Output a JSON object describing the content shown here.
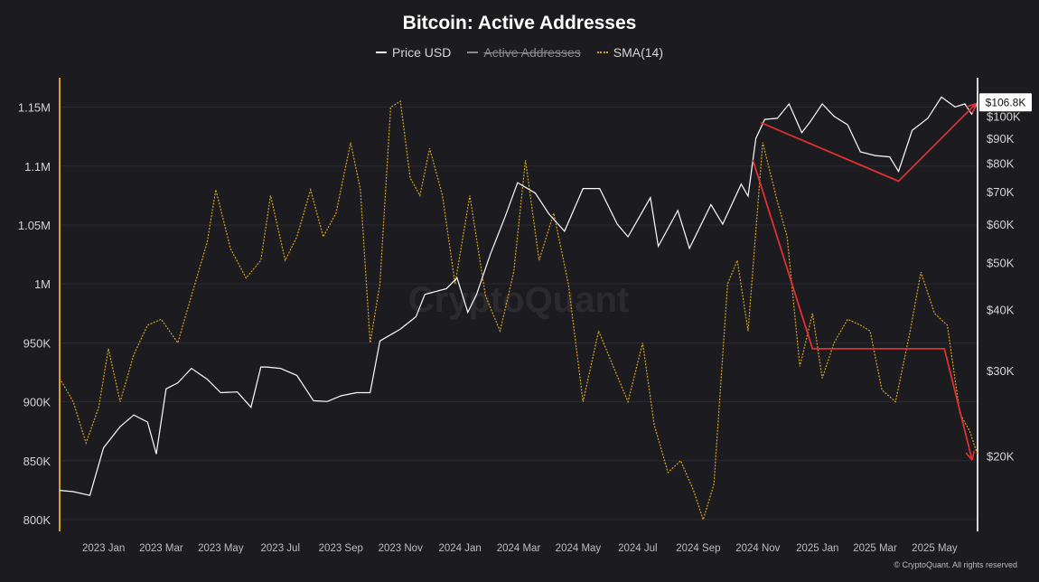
{
  "title": "Bitcoin: Active Addresses",
  "legend": [
    {
      "label": "Price USD",
      "hidden": false
    },
    {
      "label": "Active Addresses",
      "hidden": true
    },
    {
      "label": "SMA(14)",
      "hidden": false
    }
  ],
  "watermark": "CryptoQuant",
  "footer": "© CryptoQuant. All rights reserved",
  "colors": {
    "background": "#1b1b20",
    "price": "#ffffff",
    "sma": "#d9a21b",
    "annotation": "#e03030",
    "left_axis": "#d9a21b",
    "right_axis": "#d8d8d8"
  },
  "chart_data": {
    "type": "line",
    "title": "Bitcoin: Active Addresses",
    "x_ticks": [
      "2023 Jan",
      "2023 Mar",
      "2023 May",
      "2023 Jul",
      "2023 Sep",
      "2023 Nov",
      "2024 Jan",
      "2024 Mar",
      "2024 May",
      "2024 Jul",
      "2024 Sep",
      "2024 Nov",
      "2025 Jan",
      "2025 Mar",
      "2025 May"
    ],
    "x_range": [
      "2022-12-01",
      "2025-06-28"
    ],
    "left_axis": {
      "ticks": [
        "800K",
        "850K",
        "900K",
        "950K",
        "1M",
        "1.05M",
        "1.1M",
        "1.15M"
      ],
      "range": [
        790000,
        1175000
      ]
    },
    "right_axis": {
      "scale": "log",
      "ticks": [
        "$20K",
        "$30K",
        "$40K",
        "$50K",
        "$60K",
        "$70K",
        "$80K",
        "$90K",
        "$100K"
      ],
      "range": [
        14000,
        120000
      ]
    },
    "current_price_label": "$106.8K",
    "grid": true,
    "legend_position": "top-center",
    "series": [
      {
        "name": "Price USD",
        "axis": "right",
        "points": [
          [
            "2022-12-01",
            17000
          ],
          [
            "2022-12-15",
            16900
          ],
          [
            "2023-01-01",
            16600
          ],
          [
            "2023-01-15",
            20800
          ],
          [
            "2023-02-01",
            23000
          ],
          [
            "2023-02-15",
            24300
          ],
          [
            "2023-03-01",
            23500
          ],
          [
            "2023-03-10",
            20200
          ],
          [
            "2023-03-20",
            27500
          ],
          [
            "2023-04-01",
            28300
          ],
          [
            "2023-04-15",
            30300
          ],
          [
            "2023-05-01",
            28800
          ],
          [
            "2023-05-15",
            27000
          ],
          [
            "2023-06-01",
            27100
          ],
          [
            "2023-06-15",
            25200
          ],
          [
            "2023-06-25",
            30500
          ],
          [
            "2023-07-01",
            30500
          ],
          [
            "2023-07-15",
            30300
          ],
          [
            "2023-08-01",
            29300
          ],
          [
            "2023-08-18",
            26000
          ],
          [
            "2023-09-01",
            25900
          ],
          [
            "2023-09-15",
            26600
          ],
          [
            "2023-10-01",
            27000
          ],
          [
            "2023-10-15",
            27000
          ],
          [
            "2023-10-25",
            34500
          ],
          [
            "2023-11-15",
            36500
          ],
          [
            "2023-12-01",
            38700
          ],
          [
            "2023-12-10",
            43000
          ],
          [
            "2024-01-01",
            44200
          ],
          [
            "2024-01-12",
            46500
          ],
          [
            "2024-01-23",
            39500
          ],
          [
            "2024-02-01",
            43000
          ],
          [
            "2024-02-15",
            52000
          ],
          [
            "2024-03-01",
            62000
          ],
          [
            "2024-03-14",
            73000
          ],
          [
            "2024-04-01",
            69500
          ],
          [
            "2024-04-15",
            63000
          ],
          [
            "2024-05-01",
            58000
          ],
          [
            "2024-05-20",
            71000
          ],
          [
            "2024-06-06",
            71000
          ],
          [
            "2024-06-24",
            60000
          ],
          [
            "2024-07-05",
            56500
          ],
          [
            "2024-07-28",
            68000
          ],
          [
            "2024-08-05",
            54000
          ],
          [
            "2024-08-25",
            64000
          ],
          [
            "2024-09-06",
            53500
          ],
          [
            "2024-09-28",
            65800
          ],
          [
            "2024-10-10",
            60000
          ],
          [
            "2024-10-29",
            72500
          ],
          [
            "2024-11-05",
            68500
          ],
          [
            "2024-11-13",
            90000
          ],
          [
            "2024-11-22",
            98500
          ],
          [
            "2024-12-05",
            99000
          ],
          [
            "2024-12-17",
            106000
          ],
          [
            "2024-12-30",
            92500
          ],
          [
            "2025-01-07",
            97000
          ],
          [
            "2025-01-20",
            106000
          ],
          [
            "2025-02-01",
            100000
          ],
          [
            "2025-02-15",
            96000
          ],
          [
            "2025-02-28",
            84500
          ],
          [
            "2025-03-15",
            83000
          ],
          [
            "2025-03-30",
            82500
          ],
          [
            "2025-04-08",
            77000
          ],
          [
            "2025-04-22",
            93500
          ],
          [
            "2025-05-08",
            99000
          ],
          [
            "2025-05-22",
            109500
          ],
          [
            "2025-06-05",
            104500
          ],
          [
            "2025-06-15",
            106000
          ],
          [
            "2025-06-22",
            101000
          ],
          [
            "2025-06-28",
            106800
          ]
        ]
      },
      {
        "name": "SMA(14)",
        "axis": "left",
        "points": [
          [
            "2022-12-01",
            920000
          ],
          [
            "2022-12-15",
            900000
          ],
          [
            "2022-12-28",
            865000
          ],
          [
            "2023-01-10",
            895000
          ],
          [
            "2023-01-20",
            945000
          ],
          [
            "2023-02-01",
            900000
          ],
          [
            "2023-02-15",
            940000
          ],
          [
            "2023-03-01",
            965000
          ],
          [
            "2023-03-15",
            970000
          ],
          [
            "2023-04-01",
            950000
          ],
          [
            "2023-04-15",
            990000
          ],
          [
            "2023-05-01",
            1035000
          ],
          [
            "2023-05-10",
            1080000
          ],
          [
            "2023-05-25",
            1030000
          ],
          [
            "2023-06-10",
            1005000
          ],
          [
            "2023-06-25",
            1020000
          ],
          [
            "2023-07-05",
            1075000
          ],
          [
            "2023-07-20",
            1020000
          ],
          [
            "2023-08-01",
            1040000
          ],
          [
            "2023-08-15",
            1080000
          ],
          [
            "2023-08-28",
            1040000
          ],
          [
            "2023-09-10",
            1060000
          ],
          [
            "2023-09-25",
            1120000
          ],
          [
            "2023-10-05",
            1080000
          ],
          [
            "2023-10-15",
            950000
          ],
          [
            "2023-10-25",
            1000000
          ],
          [
            "2023-11-05",
            1150000
          ],
          [
            "2023-11-15",
            1155000
          ],
          [
            "2023-11-25",
            1090000
          ],
          [
            "2023-12-05",
            1075000
          ],
          [
            "2023-12-15",
            1115000
          ],
          [
            "2023-12-28",
            1075000
          ],
          [
            "2024-01-10",
            1000000
          ],
          [
            "2024-01-25",
            1075000
          ],
          [
            "2024-02-10",
            990000
          ],
          [
            "2024-02-25",
            960000
          ],
          [
            "2024-03-10",
            1010000
          ],
          [
            "2024-03-22",
            1105000
          ],
          [
            "2024-04-05",
            1020000
          ],
          [
            "2024-04-20",
            1060000
          ],
          [
            "2024-05-05",
            1000000
          ],
          [
            "2024-05-20",
            900000
          ],
          [
            "2024-06-05",
            960000
          ],
          [
            "2024-06-20",
            930000
          ],
          [
            "2024-07-05",
            900000
          ],
          [
            "2024-07-20",
            950000
          ],
          [
            "2024-08-01",
            880000
          ],
          [
            "2024-08-15",
            840000
          ],
          [
            "2024-08-28",
            850000
          ],
          [
            "2024-09-10",
            825000
          ],
          [
            "2024-09-20",
            800000
          ],
          [
            "2024-10-01",
            830000
          ],
          [
            "2024-10-15",
            1000000
          ],
          [
            "2024-10-25",
            1020000
          ],
          [
            "2024-11-05",
            960000
          ],
          [
            "2024-11-20",
            1120000
          ],
          [
            "2024-12-05",
            1070000
          ],
          [
            "2024-12-15",
            1040000
          ],
          [
            "2024-12-28",
            930000
          ],
          [
            "2025-01-10",
            975000
          ],
          [
            "2025-01-20",
            920000
          ],
          [
            "2025-02-01",
            950000
          ],
          [
            "2025-02-15",
            970000
          ],
          [
            "2025-02-28",
            965000
          ],
          [
            "2025-03-10",
            960000
          ],
          [
            "2025-03-22",
            910000
          ],
          [
            "2025-04-05",
            900000
          ],
          [
            "2025-04-20",
            960000
          ],
          [
            "2025-05-01",
            1010000
          ],
          [
            "2025-05-15",
            975000
          ],
          [
            "2025-05-28",
            965000
          ],
          [
            "2025-06-10",
            890000
          ],
          [
            "2025-06-20",
            875000
          ],
          [
            "2025-06-28",
            855000
          ]
        ]
      }
    ],
    "annotations": [
      {
        "type": "arrow",
        "color": "red",
        "points": [
          [
            "2024-11-18",
            97000
          ],
          [
            "2025-04-08",
            73500
          ],
          [
            "2025-06-25",
            105500
          ]
        ]
      },
      {
        "type": "arrow",
        "color": "red",
        "points": [
          [
            "2024-11-10",
            1105000
          ],
          [
            "2025-01-10",
            945000
          ],
          [
            "2025-05-25",
            945000
          ],
          [
            "2025-06-22",
            852000
          ]
        ]
      }
    ]
  }
}
